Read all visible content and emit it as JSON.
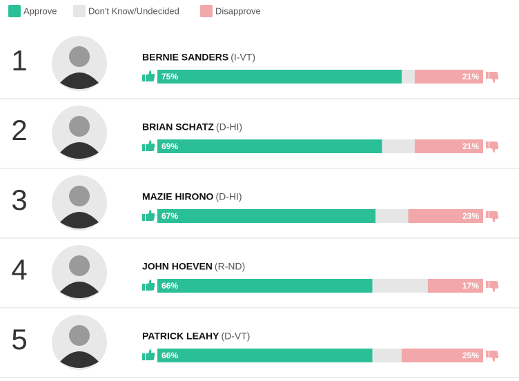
{
  "chart_data": {
    "type": "bar",
    "orientation": "horizontal",
    "stacked": true,
    "ranks": [
      1,
      2,
      3,
      4,
      5
    ],
    "categories": [
      "BERNIE SANDERS",
      "BRIAN SCHATZ",
      "MAZIE HIRONO",
      "JOHN HOEVEN",
      "PATRICK LEAHY"
    ],
    "parties": [
      "(I-VT)",
      "(D-HI)",
      "(D-HI)",
      "(R-ND)",
      "(D-VT)"
    ],
    "xlim": [
      0,
      100
    ],
    "series": [
      {
        "name": "Approve",
        "color": "#2bbf98",
        "values": [
          75,
          69,
          67,
          66,
          66
        ],
        "value_labels": [
          "75%",
          "69%",
          "67%",
          "66%",
          "66%"
        ]
      },
      {
        "name": "Don't Know/Undecided",
        "color": "#e6e6e6",
        "values": [
          4,
          10,
          10,
          17,
          9
        ]
      },
      {
        "name": "Disapprove",
        "color": "#f2a7a9",
        "values": [
          21,
          21,
          23,
          17,
          25
        ],
        "value_labels": [
          "21%",
          "21%",
          "23%",
          "17%",
          "25%"
        ]
      }
    ]
  }
}
